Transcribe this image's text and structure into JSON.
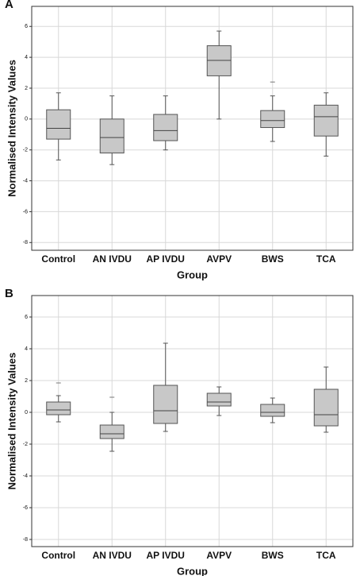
{
  "chart_data": [
    {
      "type": "box",
      "panel_label": "A",
      "x_label": "Group",
      "y_label": "Normalised Intensity Values",
      "categories": [
        "Control",
        "AN IVDU",
        "AP IVDU",
        "AVPV",
        "BWS",
        "TCA"
      ],
      "min": [
        -2.65,
        -2.95,
        -2.0,
        0,
        -1.45,
        -2.4
      ],
      "q1": [
        -1.3,
        -2.2,
        -1.4,
        2.8,
        -0.55,
        -1.1
      ],
      "median": [
        -0.6,
        -1.2,
        -0.75,
        3.8,
        -0.1,
        0.15
      ],
      "q3": [
        0.6,
        0,
        0.3,
        4.75,
        0.55,
        0.9
      ],
      "max": [
        1.7,
        1.5,
        1.5,
        5.7,
        1.5,
        1.7
      ],
      "outliers": [
        [],
        [],
        [],
        [],
        [
          2.4
        ],
        []
      ],
      "color": "#c8c8c8",
      "ylim": [
        -8.5,
        7.3
      ],
      "yticks": [
        6,
        4,
        2,
        0,
        -2,
        -4,
        -6,
        -8
      ],
      "grid": true
    },
    {
      "type": "box",
      "panel_label": "B",
      "x_label": "Group",
      "y_label": "Normalised Intensity Values",
      "categories": [
        "Control",
        "AN IVDU",
        "AP IVDU",
        "AVPV",
        "BWS",
        "TCA"
      ],
      "min": [
        -0.6,
        -2.45,
        -1.2,
        -0.2,
        -0.65,
        -1.25
      ],
      "q1": [
        -0.15,
        -1.65,
        -0.7,
        0.4,
        -0.25,
        -0.85
      ],
      "median": [
        0.15,
        -1.35,
        0.1,
        0.65,
        0,
        -0.15
      ],
      "q3": [
        0.65,
        -0.8,
        1.7,
        1.2,
        0.5,
        1.45
      ],
      "max": [
        1.05,
        0,
        4.35,
        1.6,
        0.9,
        2.85
      ],
      "outliers": [
        [
          1.85
        ],
        [
          0.95
        ],
        [],
        [],
        [],
        []
      ],
      "color": "#c8c8c8",
      "ylim": [
        -8.45,
        7.35
      ],
      "yticks": [
        6,
        4,
        2,
        0,
        -2,
        -4,
        -6,
        -8
      ],
      "grid": true
    }
  ]
}
